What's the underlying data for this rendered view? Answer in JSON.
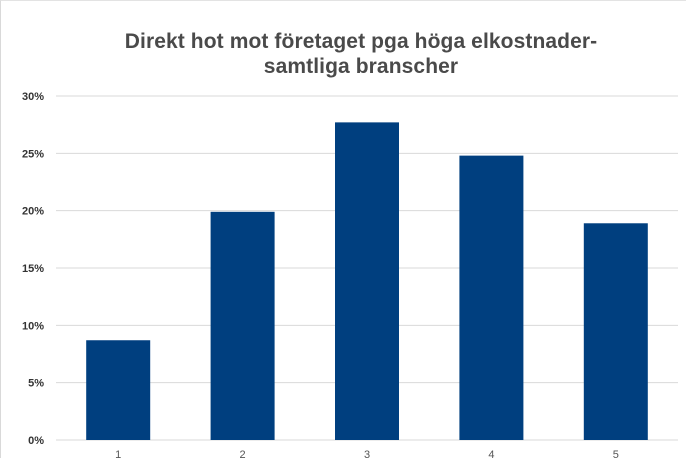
{
  "chart_data": {
    "type": "bar",
    "title_lines": [
      "Direkt hot mot företaget pga höga elkostnader-",
      "samtliga branscher"
    ],
    "categories": [
      "1",
      "2",
      "3",
      "4",
      "5"
    ],
    "values": [
      8.7,
      19.9,
      27.7,
      24.8,
      18.9
    ],
    "y_ticks": [
      "0%",
      "5%",
      "10%",
      "15%",
      "20%",
      "25%",
      "30%"
    ],
    "ylim": [
      0,
      30
    ],
    "grid": true,
    "legend": "none",
    "bar_color": "#003f7f",
    "grid_color": "#d9d9d9"
  }
}
